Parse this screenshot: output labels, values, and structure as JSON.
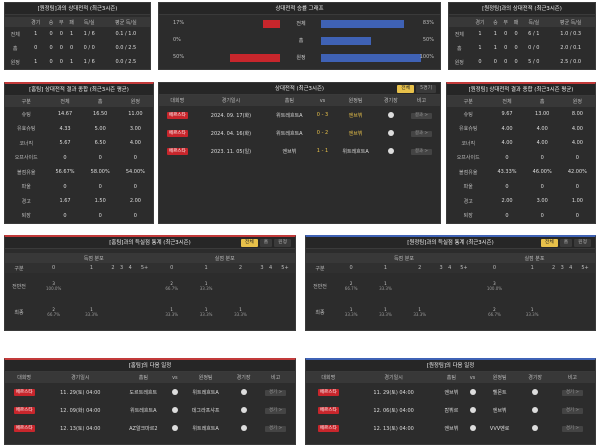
{
  "top_left": {
    "title": "[원정팀]과의 상대전적 (최근3시즌)",
    "headers": [
      "경기",
      "승",
      "무",
      "패",
      "득/실",
      "평균 득/실"
    ],
    "rows": [
      {
        "label": "전체",
        "vals": [
          "1",
          "0",
          "0",
          "1",
          "1 / 6",
          "0.1 / 1.0"
        ]
      },
      {
        "label": "홈",
        "vals": [
          "0",
          "0",
          "0",
          "0",
          "0 / 0",
          "0.0 / 2.5"
        ]
      },
      {
        "label": "원정",
        "vals": [
          "1",
          "0",
          "0",
          "1",
          "1 / 6",
          "0.0 / 2.5"
        ]
      }
    ]
  },
  "top_mid": {
    "title": "상대전적 승률 그래프",
    "rows": [
      {
        "label": "전체",
        "left": "17%",
        "right": "83%",
        "left_frac": 0.17,
        "right_frac": 0.83
      },
      {
        "label": "홈",
        "left": "0%",
        "right": "50%",
        "left_frac": 0.0,
        "right_frac": 0.5
      },
      {
        "label": "원정",
        "left": "50%",
        "right": "100%",
        "left_frac": 0.5,
        "right_frac": 1.0
      }
    ]
  },
  "top_right": {
    "title": "[원정팀]과의 상대전적 (최근3시즌)",
    "headers": [
      "경기",
      "승",
      "무",
      "패",
      "득/실",
      "평균 득/실"
    ],
    "rows": [
      {
        "label": "전체",
        "vals": [
          "1",
          "1",
          "0",
          "0",
          "6 / 1",
          "1.0 / 0.3"
        ]
      },
      {
        "label": "홈",
        "vals": [
          "1",
          "1",
          "0",
          "0",
          "0 / 0",
          "2.0 / 0.1"
        ]
      },
      {
        "label": "원정",
        "vals": [
          "0",
          "0",
          "0",
          "0",
          "5 / 0",
          "2.5 / 0.0"
        ]
      }
    ]
  },
  "stat_left": {
    "title": "[홈팀] 상대전적 결과 종합 (최근3시즌 평균)",
    "headers": [
      "구분",
      "전체",
      "홈",
      "원정"
    ],
    "rows": [
      [
        "슈팅",
        "14.67",
        "16.50",
        "11.00"
      ],
      [
        "유효슈팅",
        "4.33",
        "5.00",
        "3.00"
      ],
      [
        "코너킥",
        "5.67",
        "6.50",
        "4.00"
      ],
      [
        "오프사이드",
        "0",
        "0",
        "0"
      ],
      [
        "볼점유율",
        "56.67%",
        "58.00%",
        "54.00%"
      ],
      [
        "파울",
        "0",
        "0",
        "0"
      ],
      [
        "경고",
        "1.67",
        "1.50",
        "2.00"
      ],
      [
        "퇴장",
        "0",
        "0",
        "0"
      ]
    ]
  },
  "stat_mid": {
    "title": "상대전적 (최근3시즌)",
    "tabs": [
      "전체",
      "5경기"
    ],
    "headers": [
      "대회명",
      "경기일시",
      "홈팀",
      "vs",
      "원정팀",
      "경기장",
      "비고"
    ],
    "rows": [
      {
        "league": "에르스타",
        "date": "2024. 09. 17(화)",
        "home": "위트레흐트A",
        "score": "0 - 3",
        "away": "엔브뷔",
        "hl": "away",
        "btn": "결과 >"
      },
      {
        "league": "에르스타",
        "date": "2024. 04. 16(화)",
        "home": "위트레흐트A",
        "score": "0 - 2",
        "away": "엔브뷔",
        "hl": "away",
        "btn": "결과 >"
      },
      {
        "league": "에르스타",
        "date": "2023. 11. 05(일)",
        "home": "엔브뷔",
        "score": "1 - 1",
        "away": "위트레흐트A",
        "hl": "none",
        "btn": "결과 >"
      }
    ]
  },
  "stat_right": {
    "title": "[원정팀] 상대전적 결과 종합 (최근3시즌 평균)",
    "headers": [
      "구분",
      "전체",
      "홈",
      "원정"
    ],
    "rows": [
      [
        "슈팅",
        "9.67",
        "13.00",
        "8.00"
      ],
      [
        "유효슈팅",
        "4.00",
        "4.00",
        "4.00"
      ],
      [
        "코너킥",
        "4.00",
        "4.00",
        "4.00"
      ],
      [
        "오프사이드",
        "0",
        "0",
        "0"
      ],
      [
        "볼점유율",
        "43.33%",
        "46.00%",
        "42.00%"
      ],
      [
        "파울",
        "0",
        "0",
        "0"
      ],
      [
        "경고",
        "2.00",
        "3.00",
        "1.00"
      ],
      [
        "퇴장",
        "0",
        "0",
        "0"
      ]
    ]
  },
  "dist_left": {
    "title": "[홈팀]과의 득실점 통계 (최근3시즌)",
    "tabs": [
      "전체",
      "홈",
      "원정"
    ],
    "gain": "득점 분포",
    "loss": "실점 분포",
    "cols": [
      "0",
      "1",
      "2",
      "3",
      "4",
      "5+"
    ],
    "rows": [
      {
        "label": "전반전",
        "cells": [
          [
            "3",
            "100.0%"
          ],
          [
            "",
            ""
          ],
          [
            "",
            ""
          ],
          [
            "",
            ""
          ],
          [
            "",
            ""
          ],
          [
            "",
            ""
          ],
          [
            "2",
            "66.7%"
          ],
          [
            "1",
            "33.3%"
          ],
          [
            "",
            ""
          ],
          [
            "",
            ""
          ],
          [
            "",
            ""
          ],
          [
            "",
            ""
          ]
        ]
      },
      {
        "label": "최종",
        "cells": [
          [
            "2",
            "66.7%"
          ],
          [
            "1",
            "33.3%"
          ],
          [
            "",
            ""
          ],
          [
            "",
            ""
          ],
          [
            "",
            ""
          ],
          [
            "",
            ""
          ],
          [
            "1",
            "33.3%"
          ],
          [
            "1",
            "33.3%"
          ],
          [
            "1",
            "33.3%"
          ],
          [
            "",
            ""
          ],
          [
            "",
            ""
          ],
          [
            "",
            ""
          ]
        ]
      }
    ]
  },
  "dist_right": {
    "title": "[원정팀]과의 득실점 통계 (최근3시즌)",
    "tabs": [
      "전체",
      "홈",
      "원정"
    ],
    "gain": "득점 분포",
    "loss": "실점 분포",
    "cols": [
      "0",
      "1",
      "2",
      "3",
      "4",
      "5+"
    ],
    "rows": [
      {
        "label": "전반전",
        "cells": [
          [
            "2",
            "66.7%"
          ],
          [
            "1",
            "33.3%"
          ],
          [
            "",
            ""
          ],
          [
            "",
            ""
          ],
          [
            "",
            ""
          ],
          [
            "",
            ""
          ],
          [
            "3",
            "100.0%"
          ],
          [
            "",
            ""
          ],
          [
            "",
            ""
          ],
          [
            "",
            ""
          ],
          [
            "",
            ""
          ],
          [
            "",
            ""
          ]
        ]
      },
      {
        "label": "최종",
        "cells": [
          [
            "1",
            "33.3%"
          ],
          [
            "1",
            "33.3%"
          ],
          [
            "1",
            "33.3%"
          ],
          [
            "",
            ""
          ],
          [
            "",
            ""
          ],
          [
            "",
            ""
          ],
          [
            "2",
            "66.7%"
          ],
          [
            "1",
            "33.3%"
          ],
          [
            "",
            ""
          ],
          [
            "",
            ""
          ],
          [
            "",
            ""
          ],
          [
            "",
            ""
          ]
        ]
      }
    ]
  },
  "next_left": {
    "title": "[홈팀]의 다음 일정",
    "headers": [
      "대회명",
      "경기일시",
      "홈팀",
      "vs",
      "원정팀",
      "경기장",
      "비고"
    ],
    "rows": [
      {
        "league": "에르스타",
        "date": "11. 29(토) 04:00",
        "home": "도르트레흐트",
        "away": "위트레흐트A",
        "btn": "경기 >"
      },
      {
        "league": "에르스타",
        "date": "12. 09(화) 04:00",
        "home": "위트레흐트A",
        "away": "데그라프샤프",
        "btn": "경기 >"
      },
      {
        "league": "에르스타",
        "date": "12. 13(토) 04:00",
        "home": "AZ알크마르2",
        "away": "위트레흐트A",
        "btn": "경기 >"
      }
    ]
  },
  "next_right": {
    "title": "[원정팀]의 다음 일정",
    "headers": [
      "대회명",
      "경기일시",
      "홈팀",
      "vs",
      "원정팀",
      "경기장",
      "비고"
    ],
    "rows": [
      {
        "league": "에르스타",
        "date": "11. 29(토) 04:00",
        "home": "엔브뷔",
        "away": "헬몬트",
        "btn": "경기 >"
      },
      {
        "league": "에르스타",
        "date": "12. 06(토) 04:00",
        "home": "캄뷔르",
        "away": "엔브뷔",
        "btn": "경기 >"
      },
      {
        "league": "에르스타",
        "date": "12. 13(토) 04:00",
        "home": "엔브뷔",
        "away": "VVV벤로",
        "btn": "경기 >"
      }
    ]
  },
  "colors": {
    "accent": "#e8c14a",
    "red": "#c8262c",
    "blue": "#3f62b5"
  }
}
